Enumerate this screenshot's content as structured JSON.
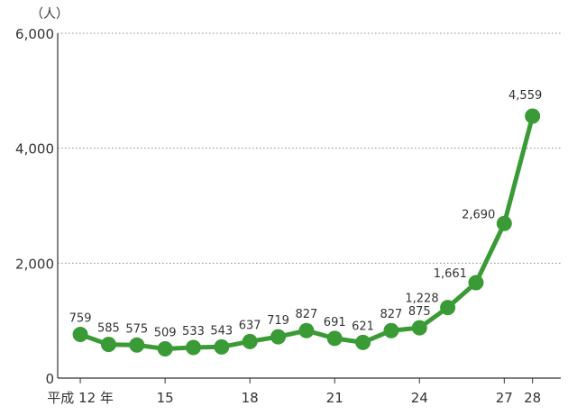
{
  "chart_data": {
    "type": "line",
    "unit_label": "（人）",
    "x": [
      12,
      13,
      14,
      15,
      16,
      17,
      18,
      19,
      20,
      21,
      22,
      23,
      24,
      25,
      26,
      27,
      28
    ],
    "values": [
      759,
      585,
      575,
      509,
      533,
      543,
      637,
      719,
      827,
      691,
      621,
      827,
      875,
      1228,
      1661,
      2690,
      4559
    ],
    "data_labels": [
      "759",
      "585",
      "575",
      "509",
      "533",
      "543",
      "637",
      "719",
      "827",
      "691",
      "621",
      "827",
      "875",
      "1,228",
      "1,661",
      "2,690",
      "4,559"
    ],
    "x_ticks": [
      {
        "x": 12,
        "label": "平成 12 年"
      },
      {
        "x": 15,
        "label": "15"
      },
      {
        "x": 18,
        "label": "18"
      },
      {
        "x": 21,
        "label": "21"
      },
      {
        "x": 24,
        "label": "24"
      },
      {
        "x": 27,
        "label": "27"
      },
      {
        "x": 28,
        "label": "28"
      }
    ],
    "y_ticks": [
      {
        "value": 0,
        "label": "0"
      },
      {
        "value": 2000,
        "label": "2,000"
      },
      {
        "value": 4000,
        "label": "4,000"
      },
      {
        "value": 6000,
        "label": "6,000"
      }
    ],
    "ylim": [
      0,
      6000
    ],
    "xlim": [
      11.2,
      29.0
    ],
    "grid": "horizontal-dotted",
    "colors": {
      "series": "#3a9a35",
      "grid": "#888888",
      "axis": "#333333"
    }
  }
}
